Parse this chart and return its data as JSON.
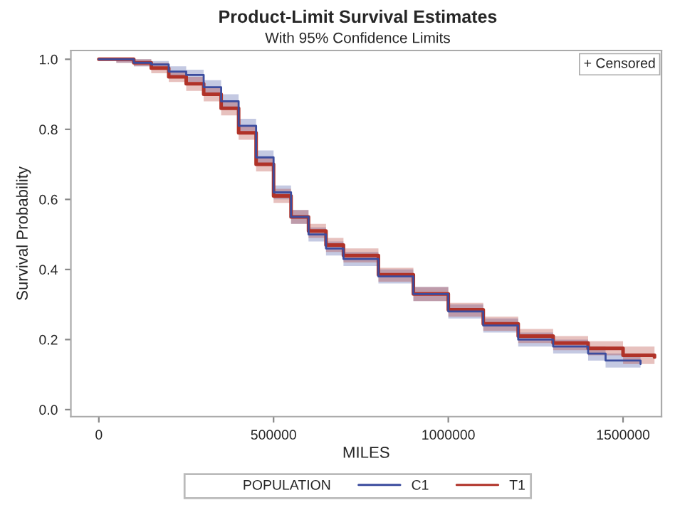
{
  "chart_data": {
    "type": "step",
    "title": "Product-Limit Survival Estimates",
    "subtitle": "With 95% Confidence Limits",
    "xlabel": "MILES",
    "ylabel": "Survival Probability",
    "legend_title": "POPULATION",
    "legend": "bottom",
    "grid": false,
    "xlim": [
      -80000,
      1610000
    ],
    "xticks": [
      0,
      500000,
      1000000,
      1500000
    ],
    "ylim": [
      -0.02,
      1.025
    ],
    "yticks": [
      {
        "value": 0,
        "label": "0.0"
      },
      0.2,
      0.4,
      0.6,
      0.8,
      {
        "value": 1,
        "label": "1.0"
      }
    ],
    "annotations": [
      "+ Censored"
    ],
    "series": [
      {
        "name": "C1",
        "color": "#3b4c9e",
        "x": [
          0,
          50000,
          100000,
          150000,
          200000,
          250000,
          300000,
          350000,
          400000,
          450000,
          500000,
          550000,
          600000,
          650000,
          700000,
          800000,
          900000,
          1000000,
          1100000,
          1200000,
          1300000,
          1400000,
          1450000,
          1550000
        ],
        "values": [
          1.0,
          1.0,
          0.99,
          0.985,
          0.965,
          0.955,
          0.92,
          0.88,
          0.81,
          0.72,
          0.62,
          0.55,
          0.5,
          0.46,
          0.43,
          0.38,
          0.33,
          0.28,
          0.24,
          0.2,
          0.18,
          0.16,
          0.14,
          0.13
        ],
        "lower": [
          1.0,
          0.99,
          0.98,
          0.97,
          0.95,
          0.935,
          0.9,
          0.86,
          0.79,
          0.7,
          0.6,
          0.53,
          0.48,
          0.44,
          0.41,
          0.36,
          0.31,
          0.26,
          0.22,
          0.18,
          0.16,
          0.14,
          0.12,
          0.11
        ],
        "upper": [
          1.0,
          1.0,
          1.0,
          0.995,
          0.98,
          0.97,
          0.94,
          0.9,
          0.83,
          0.74,
          0.64,
          0.57,
          0.52,
          0.48,
          0.45,
          0.4,
          0.35,
          0.3,
          0.26,
          0.22,
          0.2,
          0.18,
          0.16,
          0.15
        ]
      },
      {
        "name": "T1",
        "color": "#b03228",
        "x": [
          0,
          50000,
          100000,
          150000,
          200000,
          250000,
          300000,
          350000,
          400000,
          450000,
          500000,
          550000,
          600000,
          650000,
          700000,
          800000,
          900000,
          1000000,
          1100000,
          1200000,
          1300000,
          1400000,
          1500000,
          1590000
        ],
        "values": [
          1.0,
          1.0,
          0.99,
          0.975,
          0.95,
          0.93,
          0.9,
          0.86,
          0.79,
          0.7,
          0.61,
          0.55,
          0.51,
          0.47,
          0.44,
          0.385,
          0.33,
          0.285,
          0.245,
          0.21,
          0.19,
          0.175,
          0.155,
          0.15
        ],
        "lower": [
          1.0,
          0.99,
          0.98,
          0.96,
          0.935,
          0.91,
          0.88,
          0.84,
          0.77,
          0.68,
          0.59,
          0.53,
          0.49,
          0.45,
          0.42,
          0.365,
          0.31,
          0.265,
          0.225,
          0.19,
          0.17,
          0.155,
          0.13,
          0.12
        ],
        "upper": [
          1.0,
          1.0,
          1.0,
          0.99,
          0.965,
          0.95,
          0.92,
          0.88,
          0.81,
          0.72,
          0.63,
          0.57,
          0.53,
          0.49,
          0.46,
          0.405,
          0.35,
          0.305,
          0.265,
          0.23,
          0.21,
          0.195,
          0.18,
          0.18
        ]
      }
    ]
  }
}
